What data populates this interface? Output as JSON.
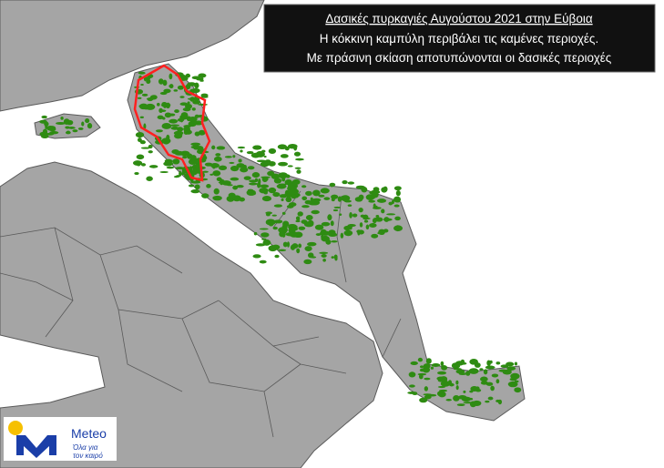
{
  "header": {
    "title": "Δασικές πυρκαγιές Αυγούστου 2021 στην Εύβοια",
    "lines": [
      "Η κόκκινη καμπύλη περιβάλει τις καμένες περιοχές.",
      "Με πράσινη σκίαση αποτυπώνονται οι δασικές περιοχές"
    ]
  },
  "logo": {
    "name": "Meteo",
    "tagline": [
      "Όλα για",
      "τον καιρό"
    ]
  }
}
